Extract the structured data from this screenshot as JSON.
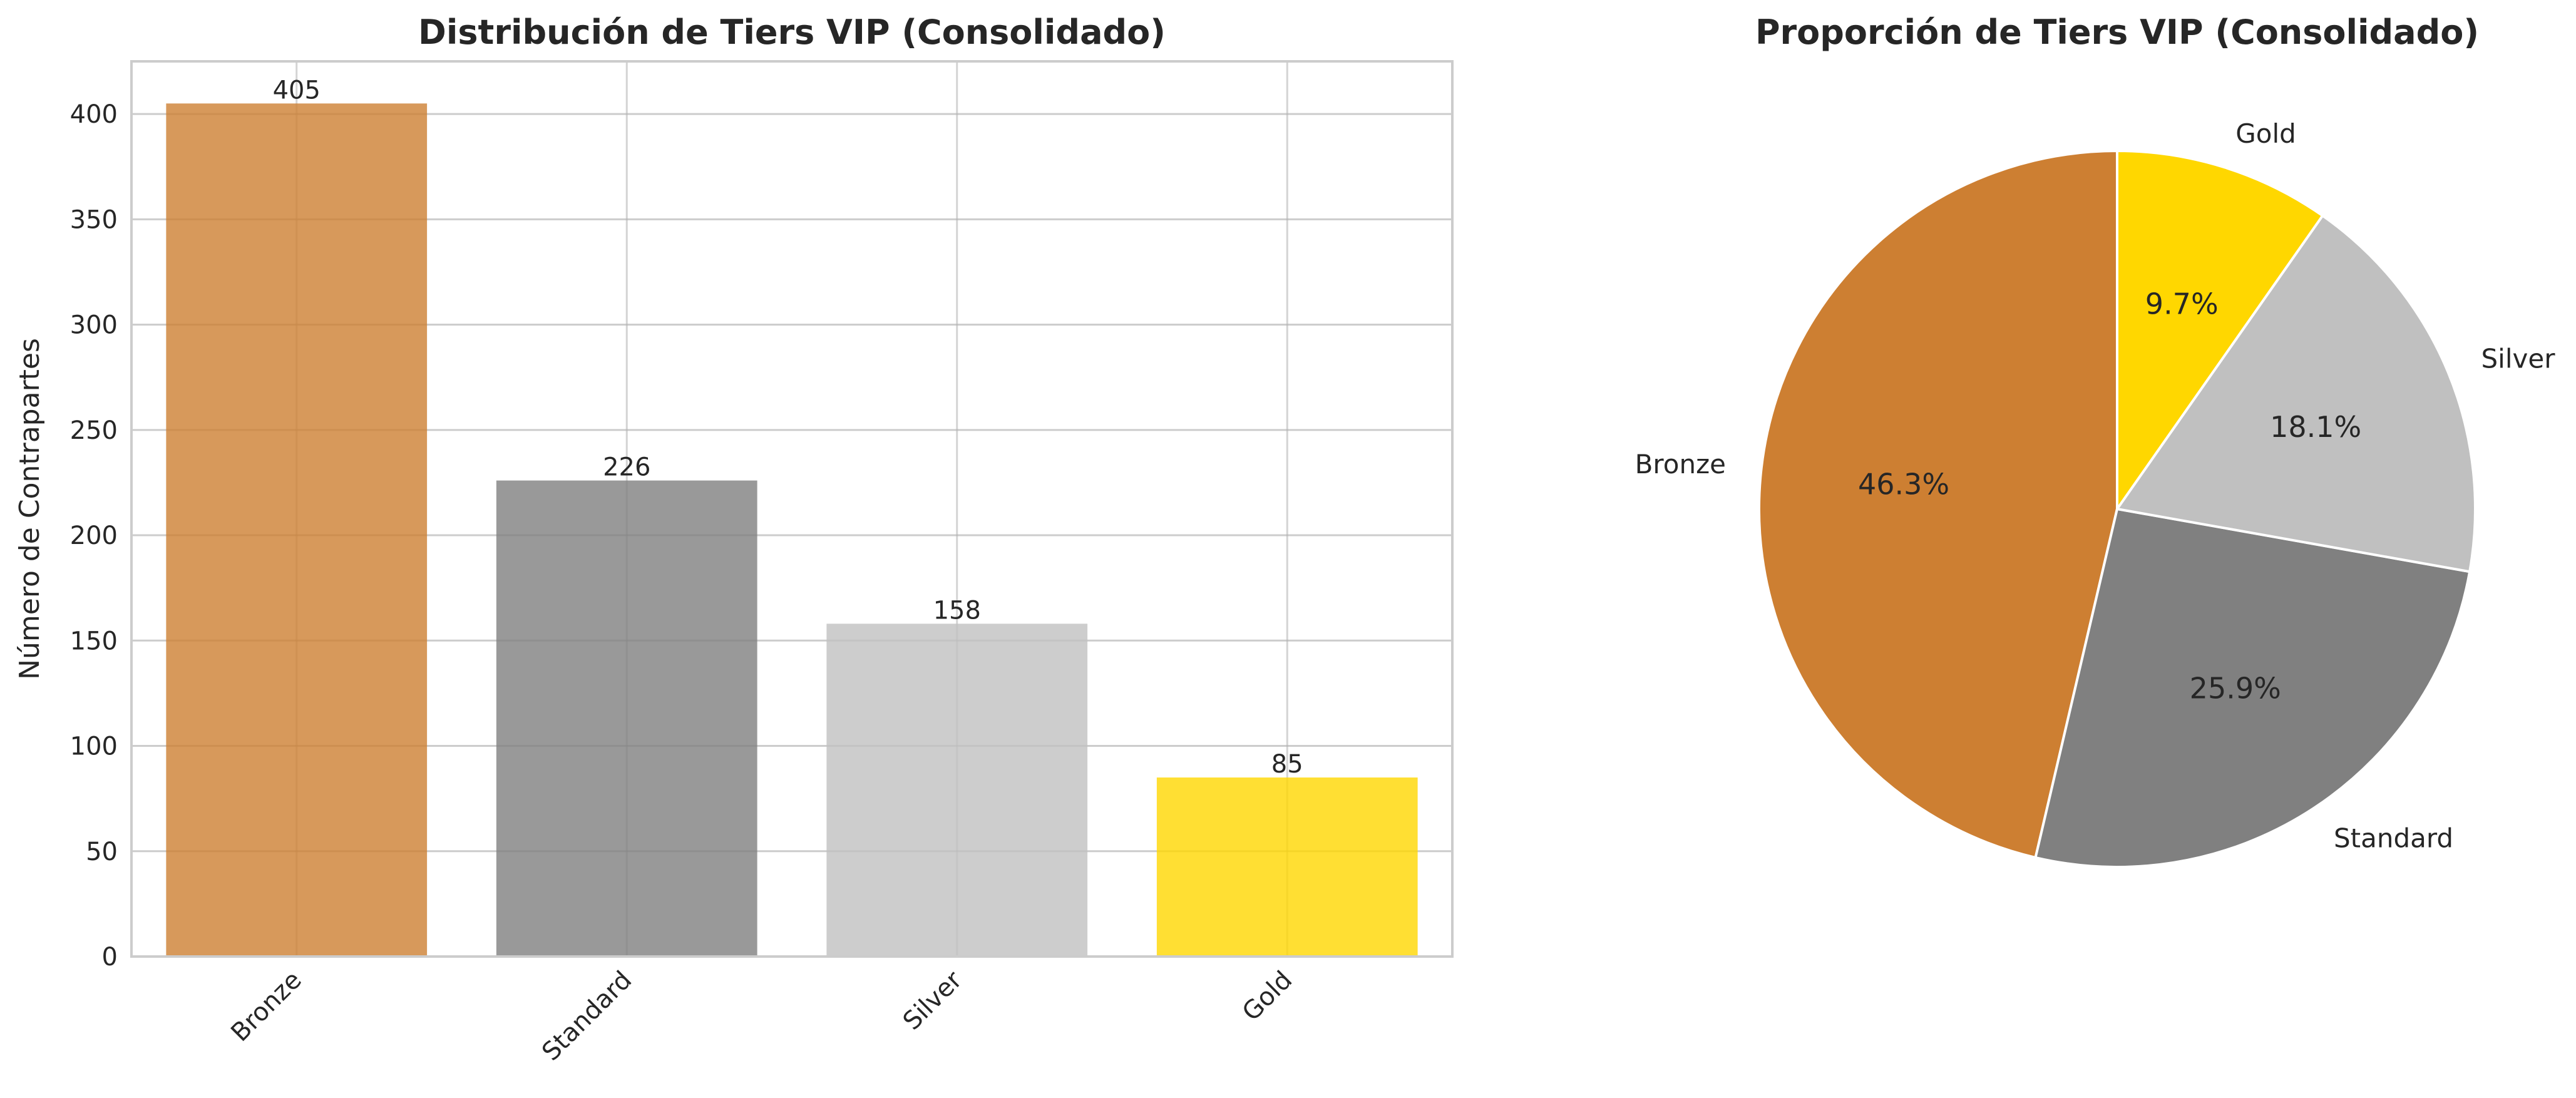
{
  "chart_data": [
    {
      "type": "bar",
      "title": "Distribución de Tiers VIP (Consolidado)",
      "xlabel": "",
      "ylabel": "Número de Contrapartes",
      "categories": [
        "Bronze",
        "Standard",
        "Silver",
        "Gold"
      ],
      "values": [
        405,
        226,
        158,
        85
      ],
      "data_labels": [
        "405",
        "226",
        "158",
        "85"
      ],
      "colors": [
        "#CD7F32",
        "#808080",
        "#C0C0C0",
        "#FFD700"
      ],
      "ylim": [
        0,
        425
      ],
      "yticks": [
        0,
        50,
        100,
        150,
        200,
        250,
        300,
        350,
        400
      ],
      "grid": true,
      "legend": "none"
    },
    {
      "type": "pie",
      "title": "Proporción de Tiers VIP (Consolidado)",
      "labels": [
        "Bronze",
        "Standard",
        "Silver",
        "Gold"
      ],
      "values": [
        405,
        226,
        158,
        85
      ],
      "percent_labels": [
        "46.3%",
        "25.9%",
        "18.1%",
        "9.7%"
      ],
      "colors": [
        "#CD7F32",
        "#808080",
        "#C0C0C0",
        "#FFD700"
      ],
      "start_angle": 90,
      "direction": "counterclockwise",
      "legend": "none"
    }
  ]
}
